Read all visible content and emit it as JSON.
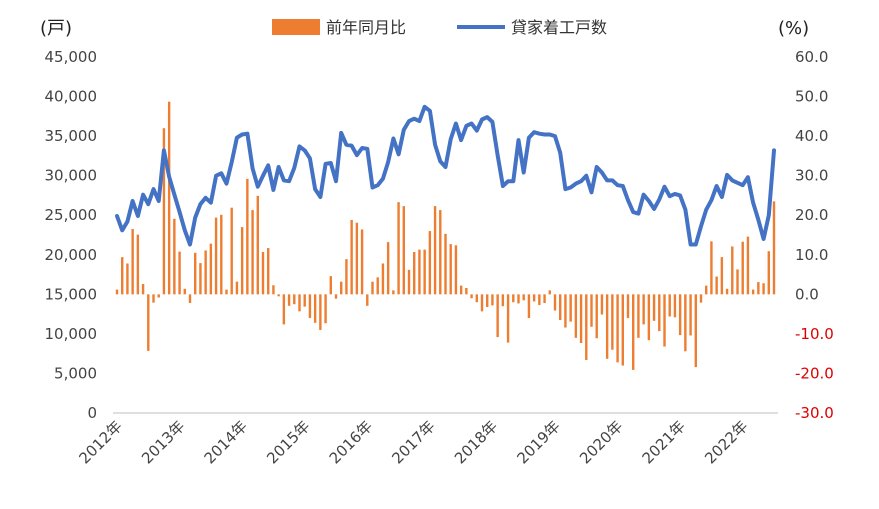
{
  "chart_data": {
    "type": "bar+line",
    "left_unit": "(戸)",
    "right_unit": "(%)",
    "legend": [
      {
        "name": "前年同月比",
        "type": "bar",
        "color": "#ED7D31"
      },
      {
        "name": "貸家着工戸数",
        "type": "line",
        "color": "#4472C4"
      }
    ],
    "left_axis": {
      "min": 0,
      "max": 45000,
      "ticks": [
        "45,000",
        "40,000",
        "35,000",
        "30,000",
        "25,000",
        "20,000",
        "15,000",
        "10,000",
        "5,000",
        "0"
      ]
    },
    "right_axis": {
      "min": -30,
      "max": 60,
      "ticks": [
        "60.0",
        "50.0",
        "40.0",
        "30.0",
        "20.0",
        "10.0",
        "0.0",
        "-10.0",
        "-20.0",
        "-30.0"
      ]
    },
    "x_ticks": [
      "2012年",
      "2013年",
      "2014年",
      "2015年",
      "2016年",
      "2017年",
      "2018年",
      "2019年",
      "2020年",
      "2021年",
      "2022年"
    ],
    "months_start": "2012-01",
    "line_series": {
      "name": "貸家着工戸数",
      "values": [
        24900,
        23100,
        24200,
        26800,
        24900,
        27600,
        26400,
        28300,
        26800,
        33200,
        29900,
        27600,
        25400,
        23100,
        21300,
        24700,
        26400,
        27200,
        26600,
        30000,
        30300,
        29000,
        31700,
        34800,
        35200,
        35300,
        30900,
        28600,
        30000,
        31300,
        28200,
        31100,
        29400,
        29300,
        31000,
        33700,
        33200,
        32200,
        28300,
        27300,
        31500,
        31600,
        29300,
        35400,
        33900,
        33800,
        32600,
        33500,
        33400,
        28500,
        28800,
        29600,
        31700,
        34700,
        32700,
        35800,
        36900,
        37200,
        36900,
        38700,
        38200,
        33900,
        31800,
        31100,
        34600,
        36600,
        34500,
        36300,
        36600,
        35700,
        37100,
        37400,
        36800,
        32600,
        28700,
        29300,
        29300,
        34500,
        30400,
        34800,
        35500,
        35300,
        35200,
        35200,
        35000,
        32900,
        28300,
        28500,
        29000,
        29300,
        30000,
        27900,
        31100,
        30400,
        29400,
        29400,
        28800,
        28700,
        26900,
        25400,
        25200,
        27600,
        26800,
        25800,
        27000,
        28600,
        27400,
        27700,
        27500,
        25700,
        21300,
        21300,
        23600,
        25700,
        26900,
        28700,
        27300,
        30100,
        29400,
        29100,
        28800,
        29800,
        26600,
        24400,
        22000,
        25000,
        33200
      ]
    },
    "bar_series": {
      "name": "前年同月比",
      "values": [
        1.2,
        9.4,
        7.8,
        16.5,
        15.1,
        2.6,
        -14.3,
        -2.1,
        -0.8,
        42.0,
        48.7,
        19.1,
        10.8,
        1.4,
        -2.2,
        10.5,
        7.9,
        11.1,
        12.8,
        19.4,
        20.1,
        1.2,
        21.9,
        3.2,
        17.0,
        29.2,
        21.3,
        24.9,
        10.7,
        11.7,
        2.3,
        -0.5,
        -7.6,
        -2.9,
        -2.5,
        -4.3,
        -3.1,
        -6.0,
        -7.2,
        -9.0,
        -7.3,
        4.6,
        -1.1,
        3.2,
        8.9,
        18.8,
        18.1,
        16.4,
        -2.9,
        3.2,
        4.3,
        7.8,
        13.2,
        1.0,
        23.3,
        22.3,
        6.2,
        10.7,
        11.3,
        11.3,
        16.0,
        22.3,
        21.3,
        15.3,
        12.7,
        12.4,
        2.2,
        1.6,
        -1.0,
        -2.0,
        -4.3,
        -3.2,
        -2.8,
        -10.8,
        -3.0,
        -12.2,
        -2.0,
        -2.3,
        -1.5,
        -6.0,
        -1.8,
        -2.7,
        -2.2,
        1.0,
        -4.1,
        -6.5,
        -8.4,
        -6.9,
        -11.0,
        -12.3,
        -16.6,
        -8.2,
        -11.1,
        -5.1,
        -16.3,
        -14.0,
        -17.2,
        -18.0,
        -6.0,
        -19.1,
        -11.0,
        -7.6,
        -11.6,
        -6.7,
        -9.3,
        -13.2,
        -5.6,
        -5.8,
        -10.3,
        -14.4,
        -10.4,
        -18.4,
        -2.1,
        2.2,
        13.4,
        4.5,
        9.4,
        1.4,
        12.1,
        6.3,
        13.3,
        14.6,
        1.2,
        3.1,
        2.8,
        10.9,
        23.5
      ]
    }
  }
}
